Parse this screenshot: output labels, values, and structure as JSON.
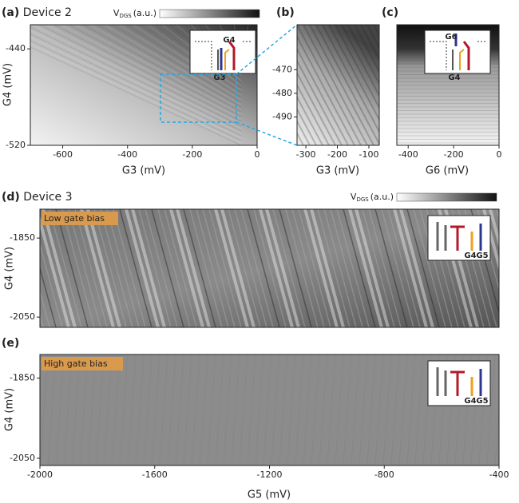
{
  "chart_data": [
    {
      "type": "heatmap",
      "panel": "(a)",
      "title": "Device 2",
      "colorbar_label": {
        "base": "V",
        "sub": "DGS",
        "unit": "(a.u.)"
      },
      "xlabel": "G3 (mV)",
      "ylabel": "G4 (mV)",
      "xlim": [
        -700,
        0
      ],
      "xticks": [
        -600,
        -400,
        -200,
        0
      ],
      "ylim": [
        -520,
        -420
      ],
      "yticks": [
        -440,
        -520
      ],
      "inset_labels": [
        "G4",
        "G3"
      ]
    },
    {
      "type": "heatmap",
      "panel": "(b)",
      "xlabel": "G3 (mV)",
      "xlim": [
        -328,
        -67
      ],
      "xticks": [
        -300,
        -200,
        -100
      ],
      "ylim": [
        -502,
        -451
      ],
      "yticks": [
        -470,
        -480,
        -490
      ]
    },
    {
      "type": "heatmap",
      "panel": "(c)",
      "xlabel": "G6 (mV)",
      "xlim": [
        -450,
        0
      ],
      "xticks": [
        -400,
        -200,
        0
      ],
      "ylim": [
        -520,
        -420
      ],
      "inset_labels": [
        "G6",
        "G4"
      ]
    },
    {
      "type": "heatmap",
      "panel": "(d)",
      "title": "Device 3",
      "colorbar_label": {
        "base": "V",
        "sub": "DGS",
        "unit": "(a.u.)"
      },
      "badge": "Low gate bias",
      "ylabel": "G4 (mV)",
      "xlim": [
        -2000,
        -400
      ],
      "ylim": [
        -2076,
        -1777
      ],
      "yticks": [
        -1850,
        -2050
      ],
      "inset_labels": [
        "G4",
        "G5"
      ]
    },
    {
      "type": "heatmap",
      "panel": "(e)",
      "badge": "High gate bias",
      "xlabel": "G5 (mV)",
      "ylabel": "G4 (mV)",
      "xlim": [
        -2000,
        -400
      ],
      "xticks": [
        -2000,
        -1600,
        -1200,
        -800,
        -400
      ],
      "ylim": [
        -2068,
        -1791
      ],
      "yticks": [
        -1850,
        -2050
      ],
      "inset_labels": [
        "G4",
        "G5"
      ]
    }
  ]
}
